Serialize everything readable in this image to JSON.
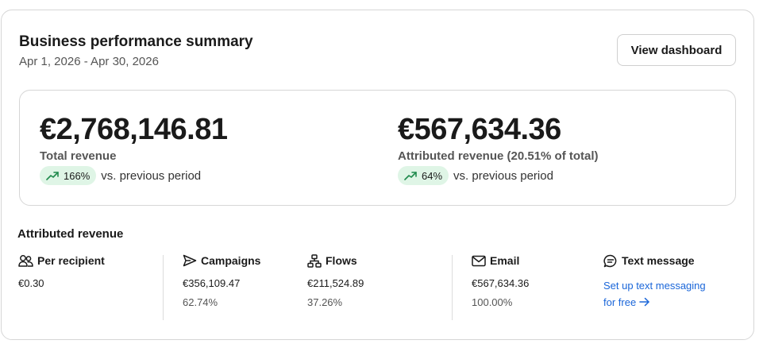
{
  "header": {
    "title": "Business performance summary",
    "date_range": "Apr 1, 2026 - Apr 30, 2026",
    "view_dashboard_label": "View dashboard"
  },
  "summary": {
    "total": {
      "amount": "€2,768,146.81",
      "label": "Total revenue",
      "change": "166%",
      "comparison": "vs. previous period"
    },
    "attributed": {
      "amount": "€567,634.36",
      "label": "Attributed revenue (20.51% of total)",
      "change": "64%",
      "comparison": "vs. previous period"
    }
  },
  "attributed_section": {
    "title": "Attributed revenue",
    "per_recipient": {
      "label": "Per recipient",
      "value": "€0.30"
    },
    "campaigns": {
      "label": "Campaigns",
      "value": "€356,109.47",
      "share": "62.74%"
    },
    "flows": {
      "label": "Flows",
      "value": "€211,524.89",
      "share": "37.26%"
    },
    "email": {
      "label": "Email",
      "value": "€567,634.36",
      "share": "100.00%"
    },
    "text_message": {
      "label": "Text message",
      "link_line1": "Set up text messaging",
      "link_line2": "for free"
    }
  },
  "colors": {
    "trend_pill_bg": "#dff5e6",
    "trend_icon": "#1f8a4c",
    "link": "#1a66d9"
  },
  "icons": [
    "trend-up-icon",
    "users-icon",
    "send-icon",
    "flow-icon",
    "mail-icon",
    "message-icon",
    "arrow-right-icon"
  ]
}
